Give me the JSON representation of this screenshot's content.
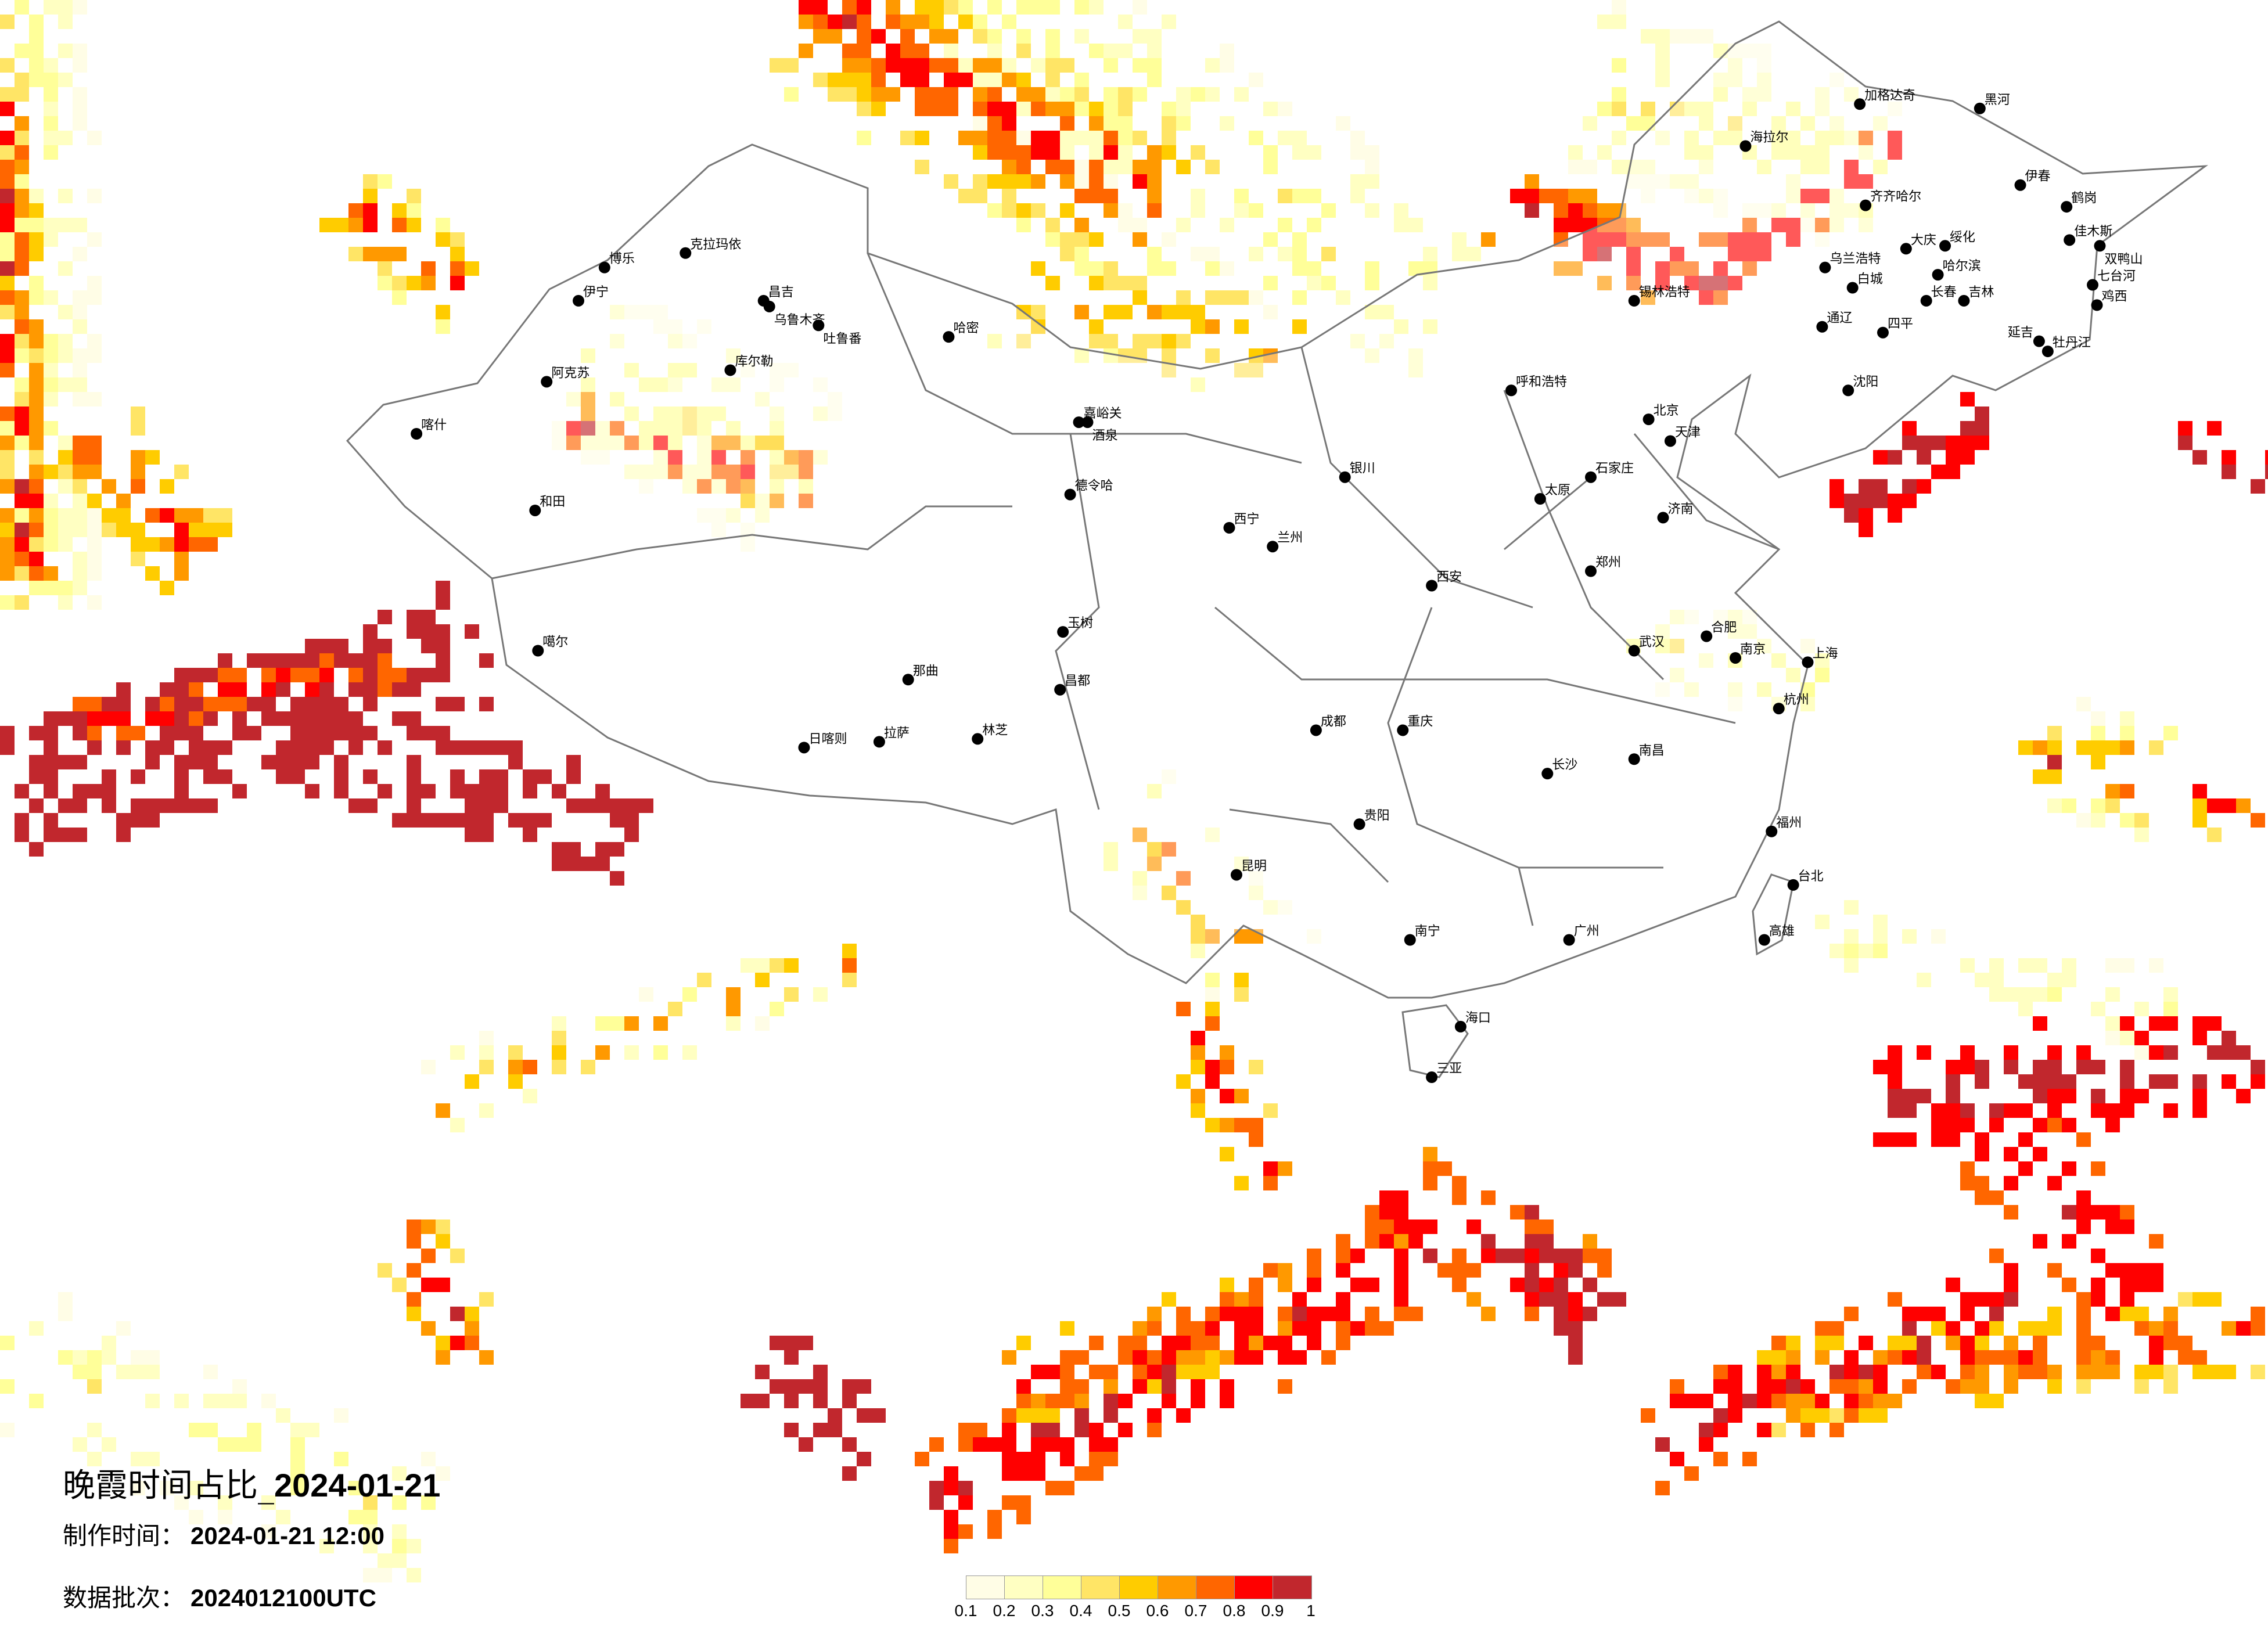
{
  "title": {
    "prefix": "晚霞时间占比_",
    "date": "2024-01-21"
  },
  "production_time": {
    "label": "制作时间：",
    "value": "2024-01-21 12:00"
  },
  "data_batch": {
    "label": "数据批次：",
    "value": "2024012100UTC"
  },
  "legend": {
    "colors": [
      "#fffde6",
      "#ffffc2",
      "#ffff99",
      "#ffe566",
      "#ffcc00",
      "#ff9900",
      "#ff6600",
      "#ff0000",
      "#c1272d"
    ],
    "labels": [
      "0.1",
      "0.2",
      "0.3",
      "0.4",
      "0.5",
      "0.6",
      "0.7",
      "0.8",
      "0.9",
      "1"
    ]
  },
  "map": {
    "boundary_color": "#777777",
    "city_marker_color": "#000000",
    "cities": [
      "克拉玛依",
      "博乐",
      "伊宁",
      "昌吉",
      "乌鲁木齐",
      "吐鲁番",
      "哈密",
      "库尔勒",
      "阿克苏",
      "喀什",
      "和田",
      "嘉峪关",
      "酒泉",
      "德令哈",
      "玉树",
      "噶尔",
      "那曲",
      "昌都",
      "日喀则",
      "拉萨",
      "林芝",
      "加格达奇",
      "黑河",
      "海拉尔",
      "齐齐哈尔",
      "大庆",
      "绥化",
      "哈尔滨",
      "伊春",
      "鹤岗",
      "佳木斯",
      "双鸭山",
      "七台河",
      "鸡西",
      "牡丹江",
      "乌兰浩特",
      "白城",
      "锡林浩特",
      "长春",
      "吉林",
      "通辽",
      "四平",
      "延吉",
      "沈阳",
      "北京",
      "天津",
      "石家庄",
      "济南",
      "郑州",
      "西安",
      "兰州",
      "西宁",
      "银川",
      "呼和浩特",
      "太原",
      "武汉",
      "长沙",
      "南昌",
      "合肥",
      "南京",
      "上海",
      "杭州",
      "福州",
      "广州",
      "南宁",
      "昆明",
      "贵阳",
      "成都",
      "重庆",
      "海口",
      "三亚",
      "台北",
      "高雄"
    ]
  }
}
